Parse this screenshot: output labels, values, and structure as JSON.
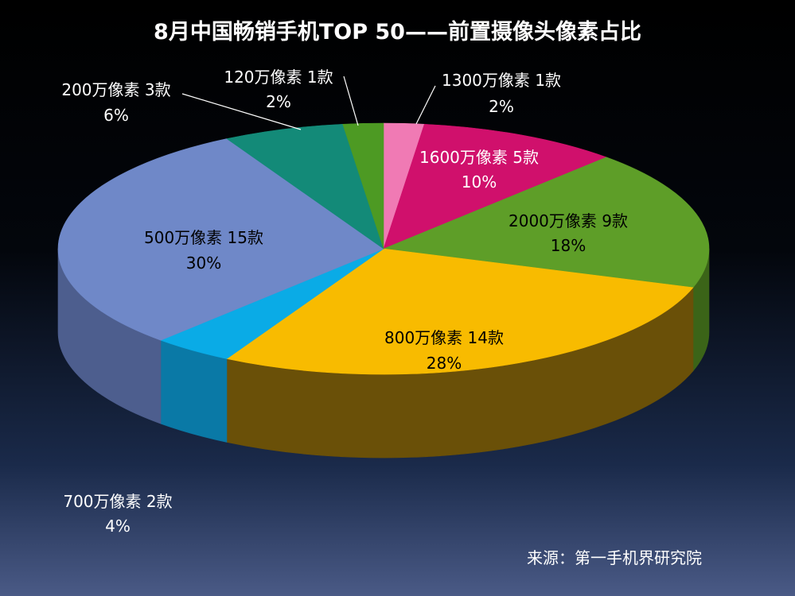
{
  "chart_data": {
    "type": "pie",
    "title": "8月中国畅销手机TOP 50——前置摄像头像素占比",
    "source": "来源：第一手机界研究院",
    "total": 50,
    "slices": [
      {
        "name": "1300万像素",
        "count": 1,
        "count_label": "1款",
        "percent": 2,
        "percent_label": "2%",
        "color": "#f07ab4",
        "side_color": "#a54d78"
      },
      {
        "name": "1600万像素",
        "count": 5,
        "count_label": "5款",
        "percent": 10,
        "percent_label": "10%",
        "color": "#d0106c",
        "side_color": "#8a0a47"
      },
      {
        "name": "2000万像素",
        "count": 9,
        "count_label": "9款",
        "percent": 18,
        "percent_label": "18%",
        "color": "#5e9e28",
        "side_color": "#3b6418"
      },
      {
        "name": "800万像素",
        "count": 14,
        "count_label": "14款",
        "percent": 28,
        "percent_label": "28%",
        "color": "#f8bb00",
        "side_color": "#6a5008"
      },
      {
        "name": "700万像素",
        "count": 2,
        "count_label": "2款",
        "percent": 4,
        "percent_label": "4%",
        "color": "#0aabe6",
        "side_color": "#0a79a6"
      },
      {
        "name": "500万像素",
        "count": 15,
        "count_label": "15款",
        "percent": 30,
        "percent_label": "30%",
        "color": "#6f88c8",
        "side_color": "#4d5e8e"
      },
      {
        "name": "200万像素",
        "count": 3,
        "count_label": "3款",
        "percent": 6,
        "percent_label": "6%",
        "color": "#138a78",
        "side_color": "#0c5a4e"
      },
      {
        "name": "120万像素",
        "count": 1,
        "count_label": "1款",
        "percent": 2,
        "percent_label": "2%",
        "color": "#4d9a23",
        "side_color": "#2f6014"
      }
    ]
  }
}
